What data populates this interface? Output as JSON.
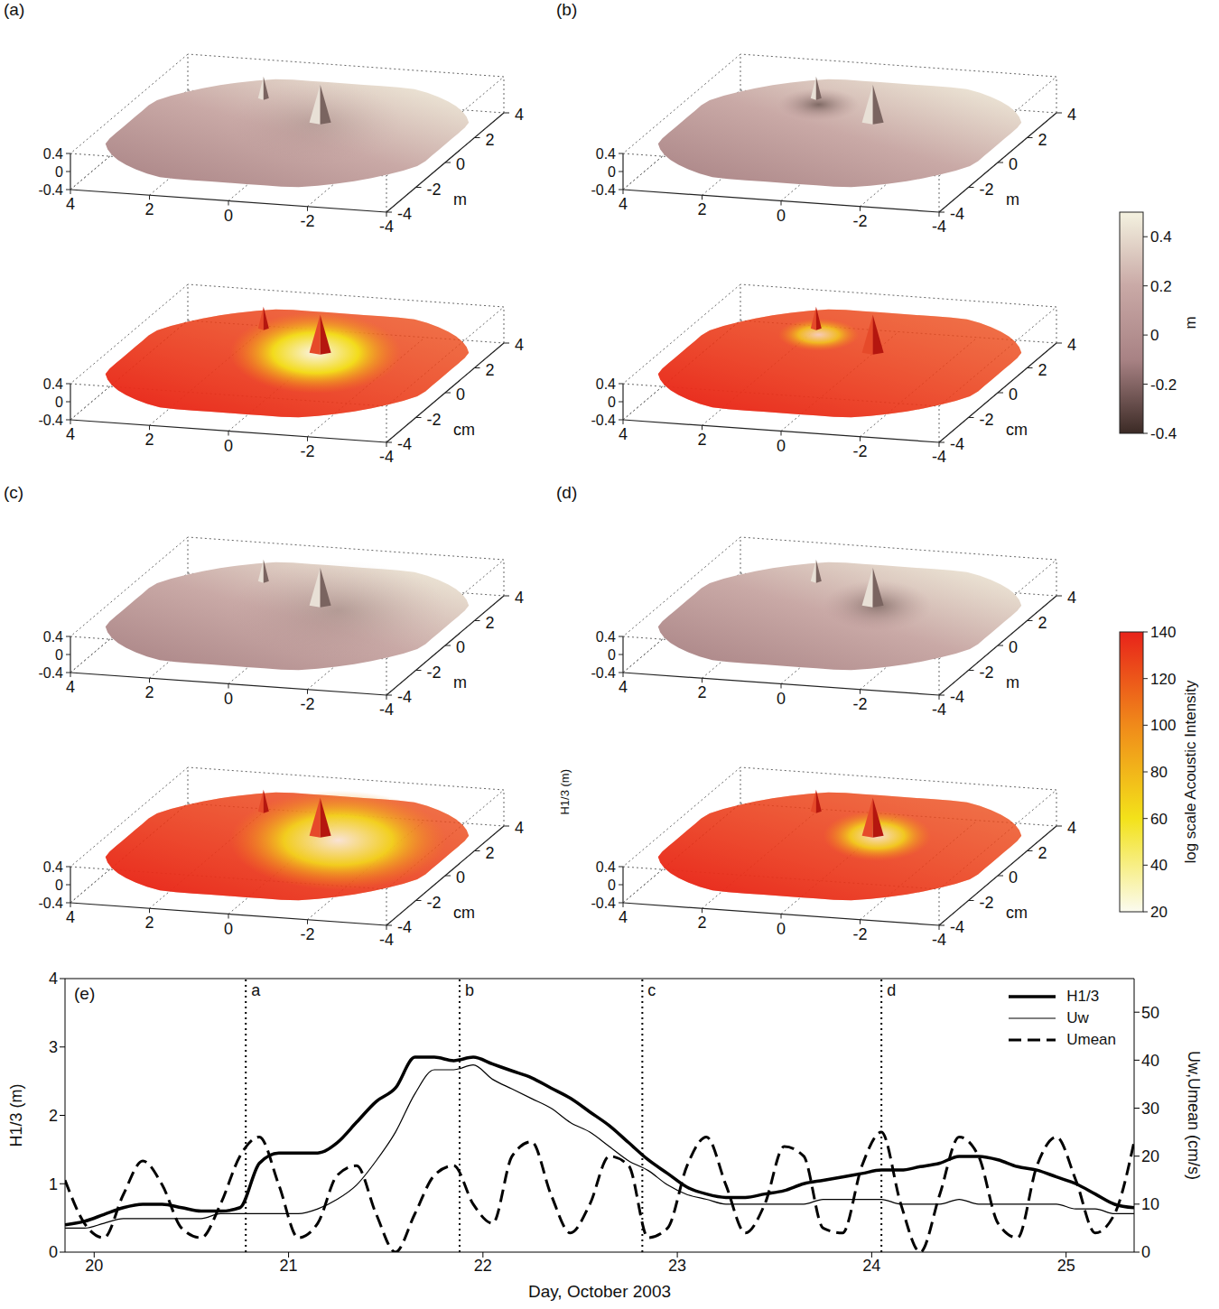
{
  "panels": [
    {
      "label": "(a)",
      "plots": [
        {
          "kind": "elevation",
          "unit": "m"
        },
        {
          "kind": "acoustic",
          "unit": "cm"
        }
      ]
    },
    {
      "label": "(b)",
      "plots": [
        {
          "kind": "elevation",
          "unit": "m"
        },
        {
          "kind": "acoustic",
          "unit": "cm"
        }
      ]
    },
    {
      "label": "(c)",
      "plots": [
        {
          "kind": "elevation",
          "unit": "m"
        },
        {
          "kind": "acoustic",
          "unit": "cm"
        }
      ]
    },
    {
      "label": "(d)",
      "plots": [
        {
          "kind": "elevation",
          "unit": "m"
        },
        {
          "kind": "acoustic",
          "unit": "cm"
        }
      ],
      "stray_label": "H1/3 (m)"
    }
  ],
  "surface_axes": {
    "xticks": [
      4,
      2,
      0,
      -2,
      -4
    ],
    "yticks": [
      -4,
      -2,
      0,
      2,
      4
    ],
    "zticks": [
      -0.4,
      0,
      0.4
    ]
  },
  "colorbars": [
    {
      "label": "m",
      "range": [
        -0.4,
        0.5
      ],
      "ticks": [
        -0.4,
        -0.2,
        0,
        0.2,
        0.4
      ],
      "colors": [
        "#3b2a25",
        "#a88284",
        "#c9a9a6",
        "#f4f2e0"
      ]
    },
    {
      "label": "log scale Acoustic Intensity",
      "range": [
        20,
        140
      ],
      "ticks": [
        20,
        40,
        60,
        80,
        100,
        120,
        140
      ],
      "colors": [
        "#fbfbf0",
        "#f3e21a",
        "#f08a1a",
        "#e8231a"
      ]
    }
  ],
  "chart_data": {
    "type": "line",
    "title": "(e)",
    "xlabel": "Day, October 2003",
    "ylabel": "H1/3 (m)",
    "y2label": "Uw,Umean (cm/s)",
    "x": [
      19.85,
      19.95,
      20.05,
      20.15,
      20.25,
      20.35,
      20.45,
      20.55,
      20.65,
      20.75,
      20.85,
      20.95,
      21.05,
      21.15,
      21.25,
      21.35,
      21.45,
      21.55,
      21.65,
      21.75,
      21.85,
      21.95,
      22.05,
      22.15,
      22.25,
      22.35,
      22.45,
      22.55,
      22.65,
      22.75,
      22.85,
      22.95,
      23.05,
      23.15,
      23.25,
      23.35,
      23.45,
      23.55,
      23.65,
      23.75,
      23.85,
      23.95,
      24.05,
      24.15,
      24.25,
      24.35,
      24.45,
      24.55,
      24.65,
      24.75,
      24.85,
      24.95,
      25.05,
      25.15,
      25.25,
      25.35
    ],
    "xlim": [
      19.85,
      25.35
    ],
    "xticks": [
      20,
      21,
      22,
      23,
      24,
      25
    ],
    "ylim": [
      0,
      4
    ],
    "yticks": [
      0,
      1,
      2,
      3,
      4
    ],
    "y2lim": [
      0,
      57
    ],
    "y2ticks": [
      0,
      10,
      20,
      30,
      40,
      50
    ],
    "legend": "upper right",
    "series": [
      {
        "name": "H1/3",
        "color": "#000000",
        "line_style": "solid",
        "values": [
          0.4,
          0.45,
          0.55,
          0.65,
          0.7,
          0.7,
          0.65,
          0.6,
          0.6,
          0.65,
          1.3,
          1.45,
          1.45,
          1.45,
          1.6,
          1.9,
          2.2,
          2.4,
          2.85,
          2.85,
          2.8,
          2.85,
          2.75,
          2.65,
          2.55,
          2.4,
          2.25,
          2.05,
          1.85,
          1.6,
          1.35,
          1.15,
          0.95,
          0.85,
          0.8,
          0.8,
          0.85,
          0.9,
          1.0,
          1.05,
          1.1,
          1.15,
          1.2,
          1.2,
          1.25,
          1.3,
          1.4,
          1.4,
          1.35,
          1.25,
          1.2,
          1.1,
          1.0,
          0.85,
          0.7,
          0.65
        ]
      },
      {
        "name": "Uw",
        "color": "#000000",
        "line_style": "solid",
        "axis": "y2",
        "values": [
          5,
          5,
          6,
          7,
          7,
          7,
          7,
          7,
          8,
          8,
          8,
          8,
          8,
          9,
          11,
          14,
          19,
          25,
          33,
          38,
          38,
          39,
          36,
          34,
          32,
          30,
          27,
          25,
          22,
          19,
          17,
          14,
          12,
          11,
          10,
          10,
          10,
          10,
          10,
          11,
          11,
          11,
          11,
          10,
          10,
          10,
          11,
          10,
          10,
          10,
          10,
          10,
          9,
          9,
          8,
          8
        ]
      },
      {
        "name": "Umean",
        "color": "#000000",
        "line_style": "dashed",
        "axis": "y2",
        "values": [
          15,
          6,
          3,
          12,
          19,
          14,
          5,
          3,
          10,
          20,
          24,
          14,
          3,
          6,
          16,
          18,
          8,
          0,
          8,
          16,
          18,
          10,
          6,
          20,
          23,
          12,
          4,
          10,
          20,
          18,
          3,
          5,
          18,
          24,
          14,
          4,
          10,
          22,
          20,
          5,
          4,
          18,
          25,
          10,
          0,
          12,
          24,
          20,
          6,
          3,
          18,
          24,
          15,
          4,
          8,
          23
        ]
      }
    ],
    "annotations": [
      {
        "x": 20.78,
        "label": "a"
      },
      {
        "x": 21.88,
        "label": "b"
      },
      {
        "x": 22.82,
        "label": "c"
      },
      {
        "x": 24.05,
        "label": "d"
      }
    ]
  }
}
